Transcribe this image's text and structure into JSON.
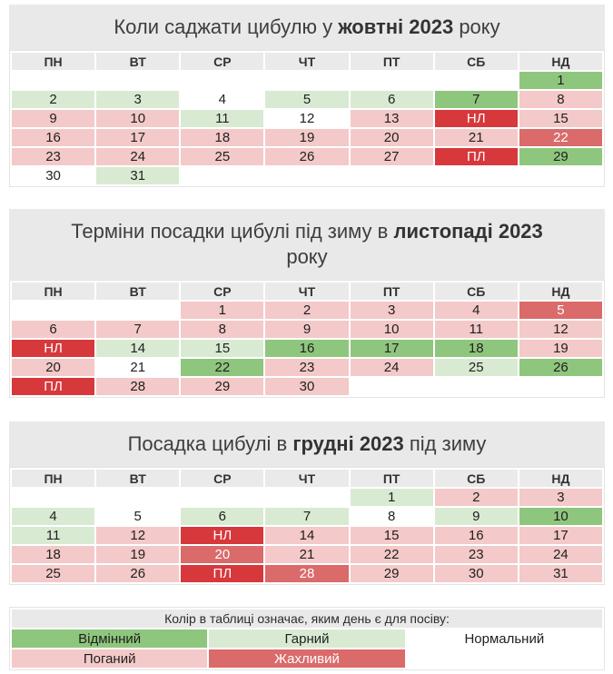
{
  "colors": {
    "excellent": "#8fc67d",
    "good": "#d9ead3",
    "normal": "#ffffff",
    "empty": "#ffffff",
    "bad": "#f4c9c9",
    "awful": "#db6a6a",
    "moon": "#d7383c",
    "header_bg": "#eaeaea",
    "title_bg": "#e9e9e9"
  },
  "weekdays": [
    "ПН",
    "ВТ",
    "СР",
    "ЧТ",
    "ПТ",
    "СБ",
    "НД"
  ],
  "calendars": [
    {
      "title_pre": "Коли саджати цибулю у ",
      "title_bold": "жовтні 2023",
      "title_post": " року",
      "rows": [
        [
          {
            "t": "",
            "c": "empty"
          },
          {
            "t": "",
            "c": "empty"
          },
          {
            "t": "",
            "c": "empty"
          },
          {
            "t": "",
            "c": "empty"
          },
          {
            "t": "",
            "c": "empty"
          },
          {
            "t": "",
            "c": "empty"
          },
          {
            "t": "1",
            "c": "excellent"
          }
        ],
        [
          {
            "t": "2",
            "c": "good"
          },
          {
            "t": "3",
            "c": "good"
          },
          {
            "t": "4",
            "c": "normal"
          },
          {
            "t": "5",
            "c": "good"
          },
          {
            "t": "6",
            "c": "good"
          },
          {
            "t": "7",
            "c": "excellent"
          },
          {
            "t": "8",
            "c": "bad"
          }
        ],
        [
          {
            "t": "9",
            "c": "bad"
          },
          {
            "t": "10",
            "c": "bad"
          },
          {
            "t": "11",
            "c": "good"
          },
          {
            "t": "12",
            "c": "normal"
          },
          {
            "t": "13",
            "c": "bad"
          },
          {
            "t": "НЛ",
            "c": "moon"
          },
          {
            "t": "15",
            "c": "bad"
          }
        ],
        [
          {
            "t": "16",
            "c": "bad"
          },
          {
            "t": "17",
            "c": "bad"
          },
          {
            "t": "18",
            "c": "bad"
          },
          {
            "t": "19",
            "c": "bad"
          },
          {
            "t": "20",
            "c": "bad"
          },
          {
            "t": "21",
            "c": "bad"
          },
          {
            "t": "22",
            "c": "awful"
          }
        ],
        [
          {
            "t": "23",
            "c": "bad"
          },
          {
            "t": "24",
            "c": "bad"
          },
          {
            "t": "25",
            "c": "bad"
          },
          {
            "t": "26",
            "c": "bad"
          },
          {
            "t": "27",
            "c": "bad"
          },
          {
            "t": "ПЛ",
            "c": "moon"
          },
          {
            "t": "29",
            "c": "excellent"
          }
        ],
        [
          {
            "t": "30",
            "c": "normal"
          },
          {
            "t": "31",
            "c": "good"
          },
          {
            "t": "",
            "c": "empty"
          },
          {
            "t": "",
            "c": "empty"
          },
          {
            "t": "",
            "c": "empty"
          },
          {
            "t": "",
            "c": "empty"
          },
          {
            "t": "",
            "c": "empty"
          }
        ]
      ]
    },
    {
      "title_pre": "Терміни посадки цибулі під зиму в ",
      "title_bold": "листопаді 2023",
      "title_post": "року",
      "rows": [
        [
          {
            "t": "",
            "c": "empty"
          },
          {
            "t": "",
            "c": "empty"
          },
          {
            "t": "1",
            "c": "bad"
          },
          {
            "t": "2",
            "c": "bad"
          },
          {
            "t": "3",
            "c": "bad"
          },
          {
            "t": "4",
            "c": "bad"
          },
          {
            "t": "5",
            "c": "awful"
          }
        ],
        [
          {
            "t": "6",
            "c": "bad"
          },
          {
            "t": "7",
            "c": "bad"
          },
          {
            "t": "8",
            "c": "bad"
          },
          {
            "t": "9",
            "c": "bad"
          },
          {
            "t": "10",
            "c": "bad"
          },
          {
            "t": "11",
            "c": "bad"
          },
          {
            "t": "12",
            "c": "bad"
          }
        ],
        [
          {
            "t": "НЛ",
            "c": "moon"
          },
          {
            "t": "14",
            "c": "good"
          },
          {
            "t": "15",
            "c": "good"
          },
          {
            "t": "16",
            "c": "excellent"
          },
          {
            "t": "17",
            "c": "excellent"
          },
          {
            "t": "18",
            "c": "excellent"
          },
          {
            "t": "19",
            "c": "bad"
          }
        ],
        [
          {
            "t": "20",
            "c": "bad"
          },
          {
            "t": "21",
            "c": "normal"
          },
          {
            "t": "22",
            "c": "excellent"
          },
          {
            "t": "23",
            "c": "bad"
          },
          {
            "t": "24",
            "c": "bad"
          },
          {
            "t": "25",
            "c": "good"
          },
          {
            "t": "26",
            "c": "excellent"
          }
        ],
        [
          {
            "t": "ПЛ",
            "c": "moon"
          },
          {
            "t": "28",
            "c": "bad"
          },
          {
            "t": "29",
            "c": "bad"
          },
          {
            "t": "30",
            "c": "bad"
          },
          {
            "t": "",
            "c": "empty"
          },
          {
            "t": "",
            "c": "empty"
          },
          {
            "t": "",
            "c": "empty"
          }
        ]
      ]
    },
    {
      "title_pre": "Посадка цибулі в ",
      "title_bold": "грудні 2023",
      "title_post": " під зиму",
      "rows": [
        [
          {
            "t": "",
            "c": "empty"
          },
          {
            "t": "",
            "c": "empty"
          },
          {
            "t": "",
            "c": "empty"
          },
          {
            "t": "",
            "c": "empty"
          },
          {
            "t": "1",
            "c": "good"
          },
          {
            "t": "2",
            "c": "bad"
          },
          {
            "t": "3",
            "c": "bad"
          }
        ],
        [
          {
            "t": "4",
            "c": "good"
          },
          {
            "t": "5",
            "c": "normal"
          },
          {
            "t": "6",
            "c": "good"
          },
          {
            "t": "7",
            "c": "good"
          },
          {
            "t": "8",
            "c": "normal"
          },
          {
            "t": "9",
            "c": "good"
          },
          {
            "t": "10",
            "c": "excellent"
          }
        ],
        [
          {
            "t": "11",
            "c": "good"
          },
          {
            "t": "12",
            "c": "bad"
          },
          {
            "t": "НЛ",
            "c": "moon"
          },
          {
            "t": "14",
            "c": "bad"
          },
          {
            "t": "15",
            "c": "bad"
          },
          {
            "t": "16",
            "c": "bad"
          },
          {
            "t": "17",
            "c": "bad"
          }
        ],
        [
          {
            "t": "18",
            "c": "bad"
          },
          {
            "t": "19",
            "c": "bad"
          },
          {
            "t": "20",
            "c": "awful"
          },
          {
            "t": "21",
            "c": "bad"
          },
          {
            "t": "22",
            "c": "bad"
          },
          {
            "t": "23",
            "c": "bad"
          },
          {
            "t": "24",
            "c": "bad"
          }
        ],
        [
          {
            "t": "25",
            "c": "bad"
          },
          {
            "t": "26",
            "c": "bad"
          },
          {
            "t": "ПЛ",
            "c": "moon"
          },
          {
            "t": "28",
            "c": "awful"
          },
          {
            "t": "29",
            "c": "bad"
          },
          {
            "t": "30",
            "c": "bad"
          },
          {
            "t": "31",
            "c": "bad"
          }
        ]
      ]
    }
  ],
  "legend": {
    "header": "Колір в таблиці означає, яким день є для посіву:",
    "rows": [
      [
        {
          "t": "Відмінний",
          "c": "excellent"
        },
        {
          "t": "Гарний",
          "c": "good"
        },
        {
          "t": "Нормальний",
          "c": "normal"
        }
      ],
      [
        {
          "t": "Поганий",
          "c": "bad"
        },
        {
          "t": "Жахливий",
          "c": "awful"
        },
        {
          "t": "",
          "c": "empty"
        }
      ]
    ]
  }
}
